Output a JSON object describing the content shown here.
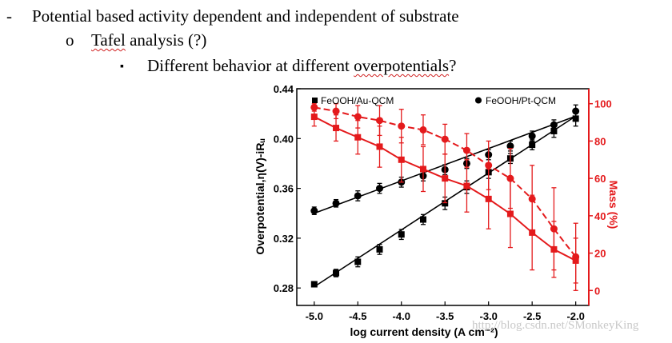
{
  "slide": {
    "bullets": [
      {
        "marker": "-",
        "text": "Potential based activity dependent and independent of substrate"
      },
      {
        "marker": "o",
        "text_pre": "",
        "text_squig": "Tafel",
        "text_post": " analysis (?)"
      },
      {
        "marker": "▪",
        "text_pre": "Different behavior at different ",
        "text_squig": "overpotentials",
        "text_post": "?"
      }
    ],
    "watermark": "http://blog.csdn.net/SMonkeyKing"
  },
  "colors": {
    "black_series": "#000000",
    "red_series": "#e41a1c"
  },
  "chart_data": {
    "type": "line",
    "title": "",
    "xlabel": "log current density (A cm⁻²)",
    "ylabel_left": "Overpotential,η(V)-iRᵤ",
    "ylabel_right": "Mass (%)",
    "xlim": [
      -5.2,
      -1.85
    ],
    "ylim_left": [
      0.266,
      0.44
    ],
    "ylim_right": [
      -8,
      108
    ],
    "x_ticks": [
      -5.0,
      -4.5,
      -4.0,
      -3.5,
      -3.0,
      -2.5,
      -2.0
    ],
    "x_tick_labels": [
      "-5.0",
      "-4.5",
      "-4.0",
      "-3.5",
      "-3.0",
      "-2.5",
      "-2.0"
    ],
    "y_left_ticks": [
      0.28,
      0.32,
      0.36,
      0.4,
      0.44
    ],
    "y_left_tick_labels": [
      "0.28",
      "0.32",
      "0.36",
      "0.40",
      "0.44"
    ],
    "y_right_ticks": [
      0,
      20,
      40,
      60,
      80,
      100
    ],
    "y_right_tick_labels": [
      "0",
      "20",
      "40",
      "60",
      "80",
      "100"
    ],
    "x": [
      -5.0,
      -4.75,
      -4.5,
      -4.25,
      -4.0,
      -3.75,
      -3.5,
      -3.25,
      -3.0,
      -2.75,
      -2.5,
      -2.25,
      -2.0
    ],
    "series": [
      {
        "name": "FeOOH/Au-QCM",
        "axis": "left",
        "marker": "square",
        "color": "#000000",
        "dashed": false,
        "values": [
          0.283,
          0.292,
          0.301,
          0.311,
          0.323,
          0.335,
          0.348,
          0.361,
          0.373,
          0.384,
          0.395,
          0.406,
          0.416
        ],
        "errors": [
          0.002,
          0.003,
          0.004,
          0.004,
          0.004,
          0.004,
          0.005,
          0.005,
          0.005,
          0.004,
          0.004,
          0.005,
          0.006
        ],
        "fit": [
          -5.0,
          0.281,
          -2.0,
          0.418
        ]
      },
      {
        "name": "FeOOH/Pt-QCM",
        "axis": "left",
        "marker": "circle",
        "color": "#000000",
        "dashed": false,
        "values": [
          0.342,
          0.348,
          0.354,
          0.36,
          0.365,
          0.37,
          0.375,
          0.38,
          0.387,
          0.394,
          0.402,
          0.411,
          0.422
        ],
        "errors": [
          0.003,
          0.003,
          0.004,
          0.004,
          0.004,
          0.004,
          0.004,
          0.004,
          0.004,
          0.004,
          0.004,
          0.004,
          0.005
        ],
        "fit": [
          -5.0,
          0.34,
          -2.0,
          0.418
        ]
      },
      {
        "name": "FeOOH/Au-QCM mass",
        "axis": "right",
        "marker": "square",
        "color": "#e41a1c",
        "dashed": false,
        "values": [
          93,
          87,
          82,
          77,
          70,
          65,
          60,
          56,
          49,
          41,
          31,
          22,
          16
        ],
        "errors": [
          5,
          7,
          9,
          11,
          12,
          12,
          13,
          14,
          16,
          18,
          20,
          15,
          12
        ]
      },
      {
        "name": "FeOOH/Pt-QCM mass",
        "axis": "right",
        "marker": "circle",
        "color": "#e41a1c",
        "dashed": true,
        "values": [
          98,
          96,
          93,
          91,
          88,
          86,
          81,
          75,
          67,
          60,
          49,
          33,
          18
        ],
        "errors": [
          2,
          4,
          6,
          8,
          9,
          8,
          8,
          9,
          13,
          16,
          18,
          22,
          18
        ]
      }
    ],
    "legend": [
      {
        "label": "FeOOH/Au-QCM",
        "marker": "square",
        "position": "top-left"
      },
      {
        "label": "FeOOH/Pt-QCM",
        "marker": "circle",
        "position": "top-right"
      }
    ]
  }
}
